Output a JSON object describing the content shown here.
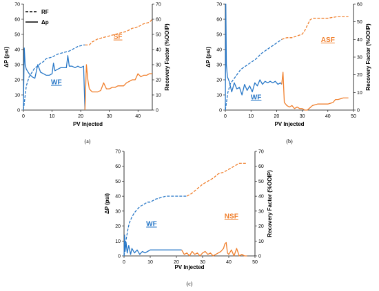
{
  "colors": {
    "blue": "#2777c7",
    "orange": "#f07f2c",
    "axis": "#000000",
    "grid": "#d9d9d9"
  },
  "legend": {
    "rf_label": "RF",
    "dp_label": "Δp"
  },
  "chart_data": [
    {
      "type": "line",
      "caption": "(a)",
      "xlabel": "PV Injected",
      "ylabel": "ΔP (psi)",
      "y2label": "Recovery Factor (%OOIP)",
      "xlim": [
        0,
        45
      ],
      "ylim": [
        0,
        70
      ],
      "y2lim": [
        0,
        70
      ],
      "xticks": [
        0,
        10,
        20,
        30,
        40
      ],
      "yticks": [
        0,
        10,
        20,
        30,
        40,
        50,
        60,
        70
      ],
      "grid": false,
      "legend_position": "top-left",
      "annotations": [
        {
          "text": "WF",
          "color": "blue",
          "x": 11.5,
          "y": 17
        },
        {
          "text": "SF",
          "color": "orange",
          "x": 33,
          "y": 47
        }
      ],
      "series": [
        {
          "name": "RF",
          "axis": "right",
          "style": "dashed",
          "color": "blue",
          "x": [
            0,
            0.5,
            1,
            2,
            3,
            4,
            5,
            6,
            7,
            8,
            10,
            12,
            14,
            16,
            18,
            19,
            20,
            21,
            21.5
          ],
          "y": [
            0,
            8,
            16,
            22,
            25,
            28,
            29,
            31,
            32,
            34,
            35,
            37,
            38,
            39,
            41,
            42,
            42.5,
            43,
            43
          ]
        },
        {
          "name": "RF",
          "axis": "right",
          "style": "dashed",
          "color": "orange",
          "x": [
            21.5,
            23,
            24,
            26,
            28,
            30,
            32,
            34,
            36,
            38,
            40,
            42,
            44,
            45
          ],
          "y": [
            43,
            43,
            45,
            47,
            48,
            49,
            50,
            51,
            52,
            54,
            55,
            57,
            58,
            60
          ]
        },
        {
          "name": "Δp",
          "axis": "left",
          "style": "solid",
          "color": "blue",
          "x": [
            0,
            0.3,
            0.6,
            1,
            2,
            3,
            4,
            5,
            6,
            7,
            8,
            9,
            10,
            10.5,
            11,
            12,
            13,
            14,
            15,
            15.5,
            16,
            17,
            18,
            19,
            20,
            21,
            21.5
          ],
          "y": [
            2,
            41,
            30,
            27,
            24,
            22,
            21,
            30,
            25,
            24,
            23,
            23,
            24,
            31,
            26,
            27,
            28,
            28,
            28,
            36,
            29,
            29,
            28,
            29,
            28,
            29,
            0
          ]
        },
        {
          "name": "Δp",
          "axis": "left",
          "style": "solid",
          "color": "orange",
          "x": [
            21.5,
            22,
            22.5,
            23,
            24,
            25,
            26,
            27,
            28,
            29,
            30,
            31,
            32,
            33,
            34,
            35,
            36,
            37,
            38,
            39,
            40,
            41,
            42,
            43,
            44,
            45
          ],
          "y": [
            0,
            30,
            20,
            14,
            12,
            12,
            12,
            13,
            18,
            14,
            14,
            15,
            15,
            16,
            16,
            16,
            18,
            19,
            20,
            20,
            24,
            22,
            23,
            23,
            24,
            24
          ]
        }
      ]
    },
    {
      "type": "line",
      "caption": "(b)",
      "xlabel": "PV Injected",
      "ylabel": "ΔP (psi)",
      "y2label": "Recovery Factor (%OOIP)",
      "xlim": [
        0,
        50
      ],
      "ylim": [
        0,
        70
      ],
      "y2lim": [
        0,
        60
      ],
      "xticks": [
        0,
        10,
        20,
        30,
        40,
        50
      ],
      "yticks": [
        0,
        10,
        20,
        30,
        40,
        50,
        60,
        70
      ],
      "y2ticks": [
        0,
        10,
        20,
        30,
        40,
        50,
        60
      ],
      "grid": false,
      "annotations": [
        {
          "text": "WF",
          "color": "blue",
          "x": 12,
          "y": 7
        },
        {
          "text": "ASF",
          "color": "orange",
          "x": 40,
          "y": 45
        }
      ],
      "series": [
        {
          "name": "RF",
          "axis": "right",
          "style": "dashed",
          "color": "blue",
          "x": [
            0,
            0.5,
            1,
            2,
            3,
            4,
            5,
            6,
            8,
            10,
            12,
            14,
            16,
            18,
            20,
            22
          ],
          "y": [
            0,
            5,
            10,
            15,
            17,
            19,
            21,
            23,
            25,
            27,
            29,
            32,
            34,
            36,
            38,
            40
          ]
        },
        {
          "name": "RF",
          "axis": "right",
          "style": "dashed",
          "color": "orange",
          "x": [
            22,
            24,
            26,
            28,
            30,
            31,
            32,
            33,
            34,
            36,
            38,
            40,
            44,
            48
          ],
          "y": [
            40,
            41,
            41,
            42,
            43,
            45,
            48,
            51,
            52,
            52,
            52,
            52,
            53,
            53
          ]
        },
        {
          "name": "Δp",
          "axis": "left",
          "style": "solid",
          "color": "blue",
          "x": [
            0,
            0.2,
            0.4,
            0.8,
            1.5,
            2.5,
            3.5,
            4.5,
            5.5,
            6.5,
            7.5,
            8.5,
            9.5,
            10.5,
            11.5,
            12.5,
            13.5,
            14.5,
            15.5,
            16.5,
            17.5,
            18.5,
            19.5,
            20.5,
            21.5,
            22
          ],
          "y": [
            0,
            70,
            30,
            22,
            19,
            12,
            18,
            14,
            15,
            10,
            17,
            13,
            16,
            12,
            18,
            16,
            20,
            17,
            19,
            18,
            19,
            18,
            19,
            17,
            18,
            17
          ]
        },
        {
          "name": "Δp",
          "axis": "left",
          "style": "solid",
          "color": "orange",
          "x": [
            22,
            22.5,
            23,
            24,
            25,
            26,
            27,
            28,
            29,
            30,
            31,
            32,
            34,
            36,
            38,
            40,
            42,
            43,
            44,
            46,
            48
          ],
          "y": [
            17,
            25,
            5,
            3,
            2,
            3,
            1,
            2,
            1,
            1,
            0,
            0,
            3,
            4,
            4,
            4,
            5,
            7,
            7,
            8,
            8
          ]
        }
      ]
    },
    {
      "type": "line",
      "caption": "(c)",
      "xlabel": "PV Injected",
      "ylabel": "ΔP (psi)",
      "y2label": "Recovery Factor (%OOIP)",
      "xlim": [
        0,
        50
      ],
      "ylim": [
        0,
        70
      ],
      "y2lim": [
        0,
        70
      ],
      "xticks": [
        0,
        10,
        20,
        30,
        40,
        50
      ],
      "yticks": [
        0,
        10,
        20,
        30,
        40,
        50,
        60,
        70
      ],
      "grid": false,
      "annotations": [
        {
          "text": "WF",
          "color": "blue",
          "x": 10.5,
          "y": 20
        },
        {
          "text": "NSF",
          "color": "orange",
          "x": 41,
          "y": 25
        }
      ],
      "series": [
        {
          "name": "RF",
          "axis": "right",
          "style": "dashed",
          "color": "blue",
          "x": [
            0,
            0.5,
            1,
            1.5,
            2,
            3,
            4,
            5,
            6,
            7,
            8,
            9,
            10,
            12,
            14,
            16,
            18,
            20,
            22,
            24
          ],
          "y": [
            0,
            8,
            13,
            18,
            22,
            26,
            29,
            31,
            33,
            34,
            35,
            36,
            36,
            38,
            39,
            40,
            40,
            40,
            40,
            40
          ]
        },
        {
          "name": "RF",
          "axis": "right",
          "style": "dashed",
          "color": "orange",
          "x": [
            24,
            26,
            28,
            30,
            32,
            34,
            36,
            38,
            40,
            42,
            44,
            46,
            47
          ],
          "y": [
            40,
            42,
            45,
            48,
            50,
            52,
            55,
            56,
            58,
            60,
            62,
            62,
            62
          ]
        },
        {
          "name": "Δp",
          "axis": "left",
          "style": "solid",
          "color": "blue",
          "x": [
            0,
            0.2,
            0.4,
            0.8,
            1.2,
            1.8,
            2.5,
            3,
            4,
            5,
            6,
            7,
            8,
            9,
            10,
            12,
            14,
            16,
            18,
            20,
            22
          ],
          "y": [
            0,
            14,
            3,
            9,
            2,
            7,
            1,
            5,
            2,
            4,
            1,
            3,
            2,
            3,
            4,
            4,
            4,
            4,
            4,
            4,
            4
          ]
        },
        {
          "name": "Δp",
          "axis": "left",
          "style": "solid",
          "color": "orange",
          "x": [
            22,
            23,
            24,
            25,
            26,
            27,
            28,
            29,
            30,
            31,
            32,
            33,
            34,
            35,
            36,
            37,
            38,
            38.5,
            39,
            39.5,
            40,
            41,
            42,
            43,
            44,
            45,
            46,
            47
          ],
          "y": [
            4,
            1,
            2,
            0,
            3,
            1,
            2,
            0,
            2,
            3,
            1,
            2,
            0,
            1,
            2,
            3,
            5,
            8,
            9,
            2,
            1,
            4,
            0,
            5,
            0,
            1,
            0,
            0
          ]
        }
      ]
    }
  ]
}
